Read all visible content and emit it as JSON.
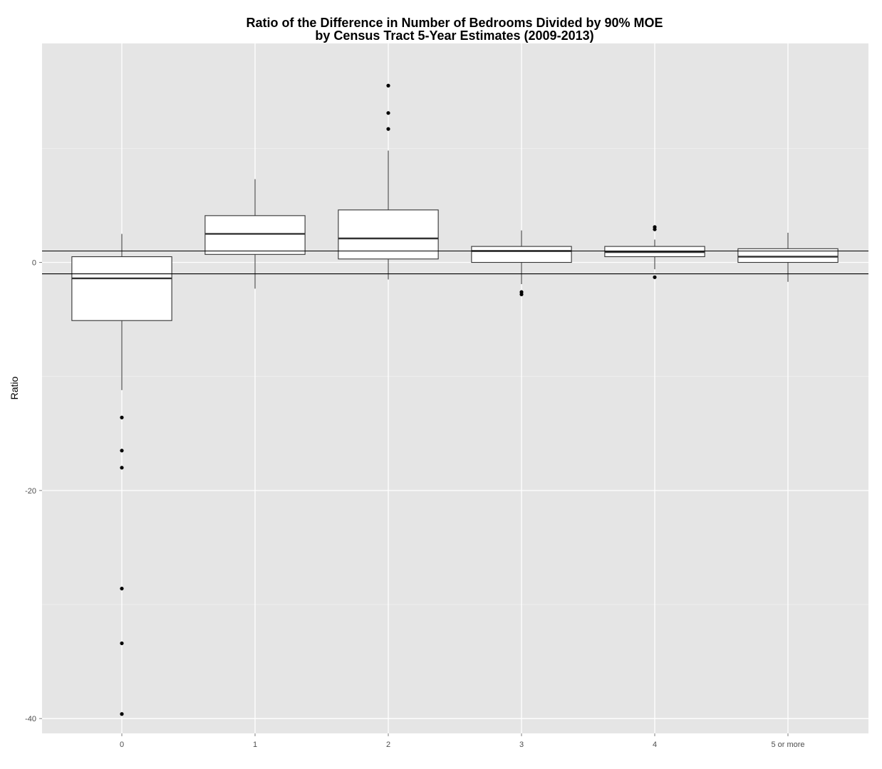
{
  "chart_data": {
    "type": "box",
    "title_lines": [
      "Ratio of the Difference in Number of Bedrooms Divided by 90% MOE",
      "by Census Tract 5-Year Estimates (2009-2013)"
    ],
    "xlabel": "",
    "ylabel": "Ratio",
    "categories": [
      "0",
      "1",
      "2",
      "3",
      "4",
      "5 or more"
    ],
    "ylim": [
      -41.3,
      19.2
    ],
    "yticks": [
      0,
      -20,
      -40
    ],
    "ytick_labels": [
      "0",
      "-20",
      "-40"
    ],
    "grid": true,
    "reference_lines": [
      1,
      -1
    ],
    "boxes": [
      {
        "category": "0",
        "lower_whisker": -11.2,
        "q1": -5.1,
        "median": -1.4,
        "q3": 0.5,
        "upper_whisker": 2.5,
        "outliers": [
          -13.6,
          -16.5,
          -18.0,
          -28.6,
          -33.4,
          -39.6
        ]
      },
      {
        "category": "1",
        "lower_whisker": -2.3,
        "q1": 0.7,
        "median": 2.5,
        "q3": 4.1,
        "upper_whisker": 7.3,
        "outliers": []
      },
      {
        "category": "2",
        "lower_whisker": -1.5,
        "q1": 0.3,
        "median": 2.1,
        "q3": 4.6,
        "upper_whisker": 9.8,
        "outliers": [
          15.5,
          13.1,
          11.7
        ]
      },
      {
        "category": "3",
        "lower_whisker": -1.9,
        "q1": 0.0,
        "median": 1.0,
        "q3": 1.4,
        "upper_whisker": 2.8,
        "outliers": [
          -2.6,
          -2.8
        ]
      },
      {
        "category": "4",
        "lower_whisker": -0.6,
        "q1": 0.5,
        "median": 0.9,
        "q3": 1.4,
        "upper_whisker": 2.0,
        "outliers": [
          3.1,
          2.9,
          -1.3
        ]
      },
      {
        "category": "5 or more",
        "lower_whisker": -1.7,
        "q1": 0.0,
        "median": 0.5,
        "q3": 1.2,
        "upper_whisker": 2.6,
        "outliers": []
      }
    ],
    "colors": {
      "panel": "#e5e5e5",
      "grid_major": "#ffffff",
      "grid_minor": "#f2f2f2",
      "box_fill": "#ffffff",
      "box_stroke": "#333333",
      "outlier": "#000000",
      "reference_line": "#000000",
      "tick_text": "#4d4d4d"
    }
  }
}
